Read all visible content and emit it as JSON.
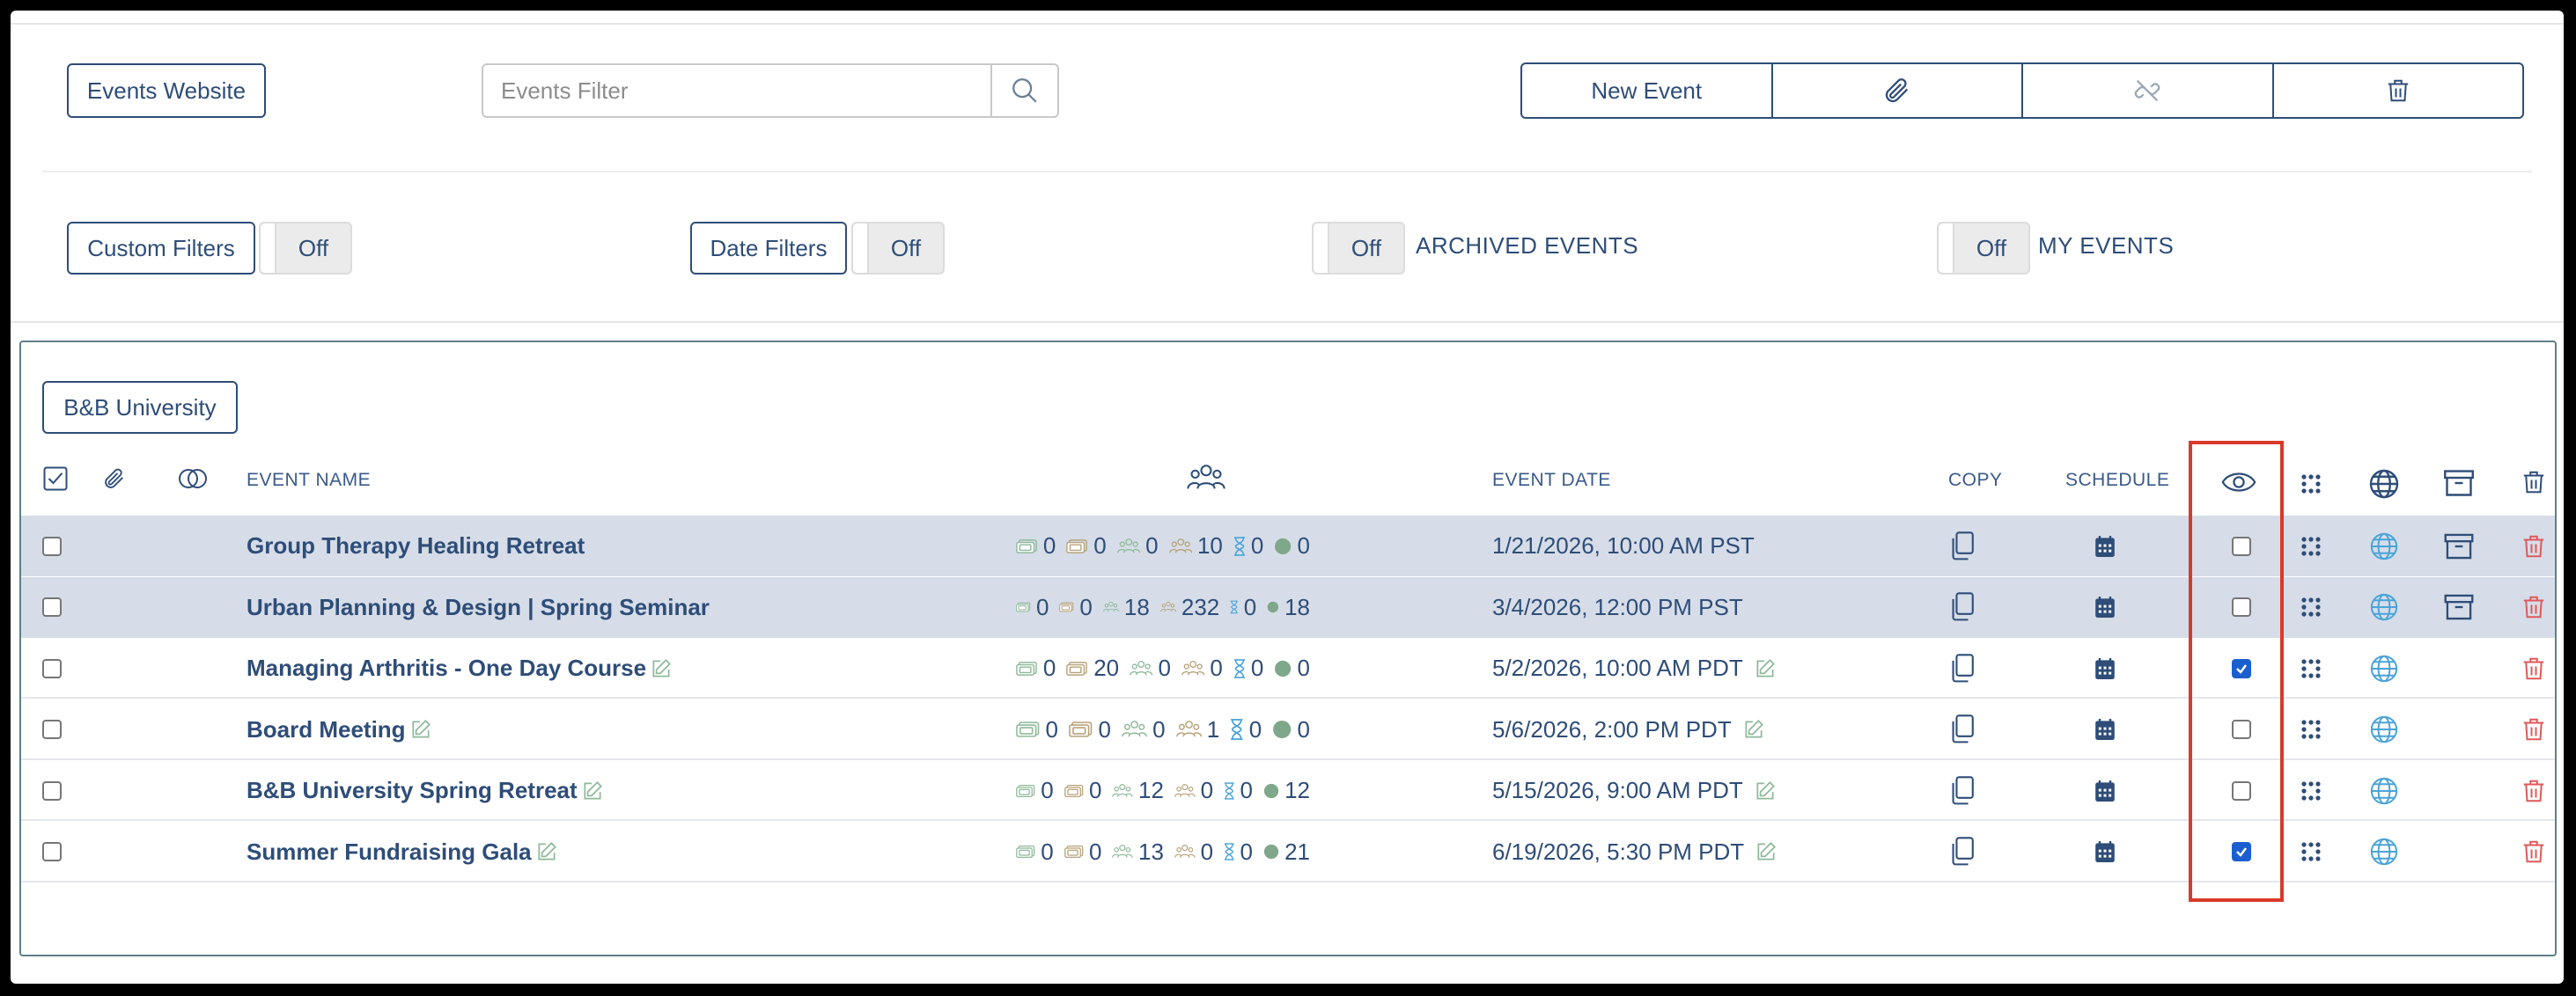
{
  "toolbar": {
    "events_website_label": "Events Website",
    "filter_placeholder": "Events Filter",
    "new_event_label": "New Event"
  },
  "filters": {
    "custom_filters_label": "Custom Filters",
    "custom_filters_state": "Off",
    "date_filters_label": "Date Filters",
    "date_filters_state": "Off",
    "archived_state": "Off",
    "archived_label": "ARCHIVED EVENTS",
    "my_events_state": "Off",
    "my_events_label": "MY EVENTS"
  },
  "panel": {
    "org_button_label": "B&B University",
    "headers": {
      "event_name": "EVENT NAME",
      "event_date": "EVENT DATE",
      "copy": "COPY",
      "schedule": "SCHEDULE"
    }
  },
  "colors": {
    "primary": "#2e4d78",
    "highlight_row": "#d6dde8",
    "delete_red": "#e0595a",
    "globe_blue": "#4aa3d8",
    "stat_green": "#8fb99a",
    "stat_tan": "#b8a27a",
    "hourglass_blue": "#4aa3d8",
    "dot_green": "#7fa88a",
    "callout_red": "#d93a2b"
  },
  "icons": [
    "search-icon",
    "paperclip-icon",
    "unlink-icon",
    "trash-icon",
    "check-square-icon",
    "circles-icon",
    "people-icon",
    "eye-icon",
    "qr-dots-icon",
    "globe-icon",
    "archive-icon",
    "copy-icon",
    "calendar-icon",
    "edit-icon",
    "hourglass-icon",
    "ticket-icon"
  ],
  "events": [
    {
      "name": "Group Therapy Healing Retreat",
      "editable": false,
      "stats": [
        "0",
        "0",
        "0",
        "10",
        "0",
        "0"
      ],
      "date": "1/21/2026, 10:00 AM PST",
      "date_editable": false,
      "visible": false,
      "archivable": true,
      "highlighted": true
    },
    {
      "name": "Urban Planning & Design | Spring Seminar",
      "editable": false,
      "stats": [
        "0",
        "0",
        "18",
        "232",
        "0",
        "18"
      ],
      "date": "3/4/2026, 12:00 PM PST",
      "date_editable": false,
      "visible": false,
      "archivable": true,
      "highlighted": true
    },
    {
      "name": "Managing Arthritis - One Day Course",
      "editable": true,
      "stats": [
        "0",
        "20",
        "0",
        "0",
        "0",
        "0"
      ],
      "date": "5/2/2026, 10:00 AM PDT",
      "date_editable": true,
      "visible": true,
      "archivable": false,
      "highlighted": false
    },
    {
      "name": "Board Meeting",
      "editable": true,
      "stats": [
        "0",
        "0",
        "0",
        "1",
        "0",
        "0"
      ],
      "date": "5/6/2026, 2:00 PM PDT",
      "date_editable": true,
      "visible": false,
      "archivable": false,
      "highlighted": false
    },
    {
      "name": "B&B University Spring Retreat",
      "editable": true,
      "stats": [
        "0",
        "0",
        "12",
        "0",
        "0",
        "12"
      ],
      "date": "5/15/2026, 9:00 AM PDT",
      "date_editable": true,
      "visible": false,
      "archivable": false,
      "highlighted": false
    },
    {
      "name": "Summer Fundraising Gala",
      "editable": true,
      "stats": [
        "0",
        "0",
        "13",
        "0",
        "0",
        "21"
      ],
      "date": "6/19/2026, 5:30 PM PDT",
      "date_editable": true,
      "visible": true,
      "archivable": false,
      "highlighted": false
    }
  ]
}
